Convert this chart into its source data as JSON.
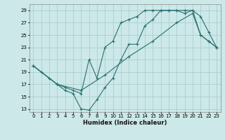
{
  "xlabel": "Humidex (Indice chaleur)",
  "background_color": "#cce8e8",
  "grid_color": "#aacfcf",
  "line_color": "#2a7070",
  "xlim": [
    -0.5,
    23.5
  ],
  "ylim": [
    12.5,
    30.0
  ],
  "xticks": [
    0,
    1,
    2,
    3,
    4,
    5,
    6,
    7,
    8,
    9,
    10,
    11,
    12,
    13,
    14,
    15,
    16,
    17,
    18,
    19,
    20,
    21,
    22,
    23
  ],
  "yticks": [
    13,
    15,
    17,
    19,
    21,
    23,
    25,
    27,
    29
  ],
  "line1_x": [
    0,
    1,
    2,
    3,
    4,
    5,
    6,
    7,
    8,
    9,
    10,
    11,
    12,
    13,
    14,
    15,
    16,
    17,
    18,
    19,
    20,
    21,
    22,
    23
  ],
  "line1_y": [
    20,
    19,
    18,
    17,
    16,
    15.5,
    13.0,
    12.8,
    14.5,
    16.5,
    18,
    21,
    23.5,
    23.5,
    26.5,
    27.5,
    29,
    29,
    29,
    29,
    29,
    25,
    24,
    23
  ],
  "line2_x": [
    0,
    3,
    4,
    5,
    6,
    7,
    8,
    9,
    10,
    11,
    12,
    13,
    14,
    15,
    16,
    17,
    18,
    19,
    20,
    21,
    22,
    23
  ],
  "line2_y": [
    20,
    17,
    16.5,
    16,
    15.5,
    21.0,
    18,
    23,
    24,
    27,
    27.5,
    28,
    29,
    29,
    29,
    29,
    29,
    28.5,
    29,
    28,
    25.5,
    23
  ],
  "line3_x": [
    0,
    3,
    6,
    9,
    12,
    15,
    18,
    20,
    21,
    22,
    23
  ],
  "line3_y": [
    20,
    17,
    16,
    18.5,
    21.5,
    24,
    27,
    28.5,
    25,
    24.0,
    23.0
  ]
}
